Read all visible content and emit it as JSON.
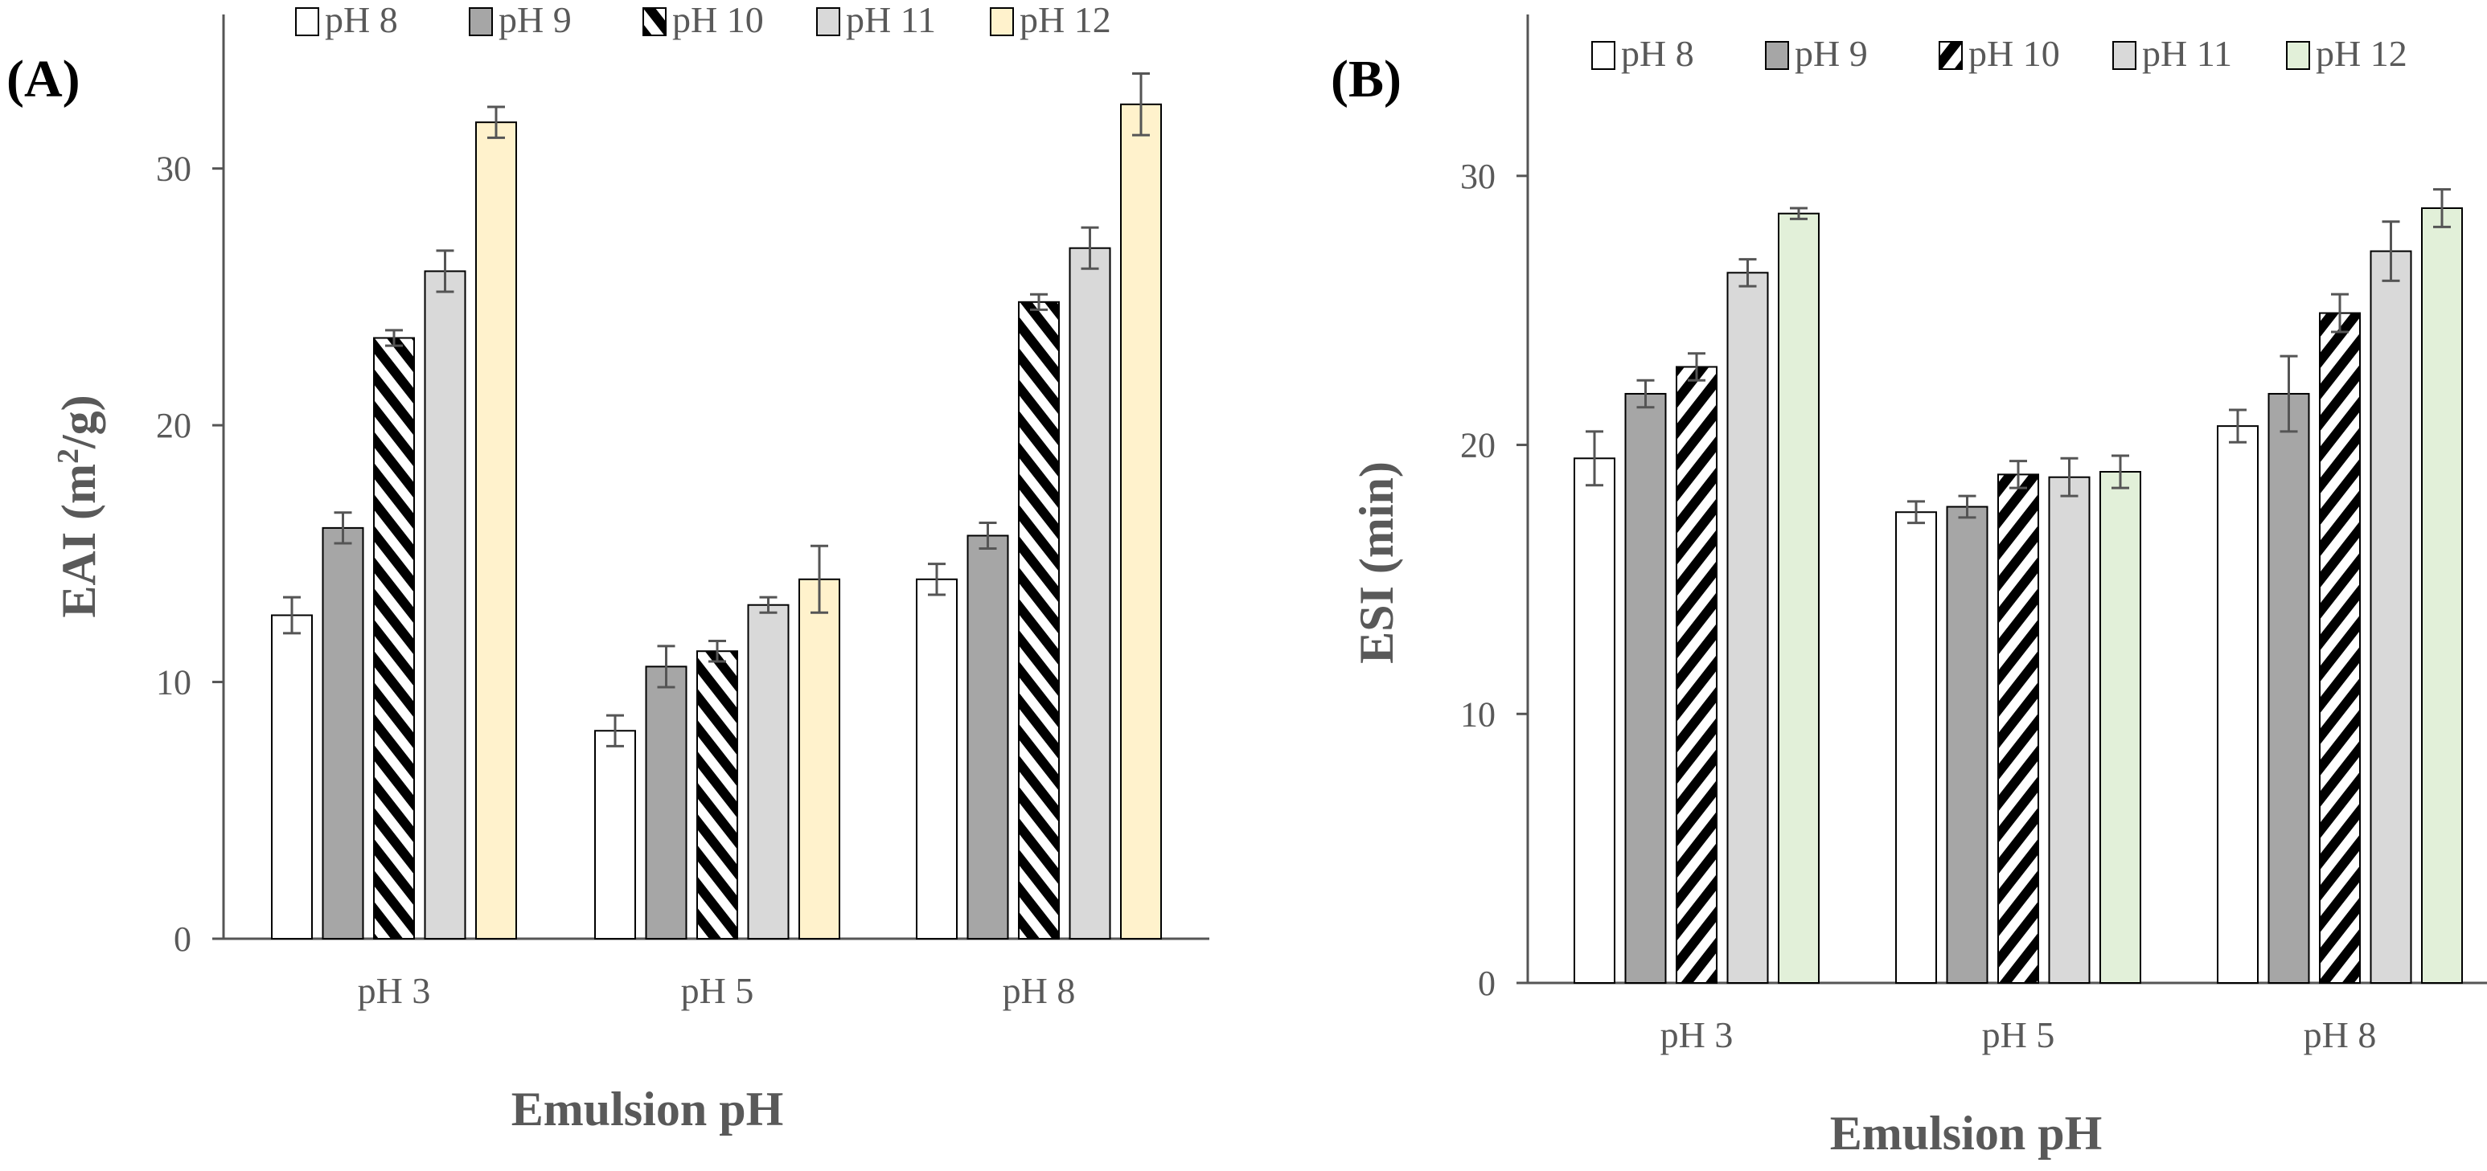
{
  "chart_data": [
    {
      "type": "bar",
      "panel_label": "(A)",
      "title": "",
      "xlabel": "Emulsion pH",
      "ylabel_main": "EAI (m",
      "ylabel_sup": "2",
      "ylabel_end": "/g)",
      "ylim": [
        0,
        36
      ],
      "yticks": [
        0,
        10,
        20,
        30
      ],
      "ytick_labels": [
        "0",
        "10",
        "20",
        "30"
      ],
      "grid": false,
      "legend_position": "top",
      "categories": [
        "pH 3",
        "pH 5",
        "pH 8"
      ],
      "series": [
        {
          "name": "pH 8",
          "pattern": "white",
          "values": [
            12.6,
            8.1,
            14.0
          ],
          "errors": [
            0.7,
            0.6,
            0.6
          ]
        },
        {
          "name": "pH 9",
          "pattern": "darkgray",
          "values": [
            16.0,
            10.6,
            15.7
          ],
          "errors": [
            0.6,
            0.8,
            0.5
          ]
        },
        {
          "name": "pH 10",
          "pattern": "stripes",
          "values": [
            23.4,
            11.2,
            24.8
          ],
          "errors": [
            0.3,
            0.4,
            0.3
          ]
        },
        {
          "name": "pH 11",
          "pattern": "lightgray",
          "values": [
            26.0,
            13.0,
            26.9
          ],
          "errors": [
            0.8,
            0.3,
            0.8
          ]
        },
        {
          "name": "pH 12",
          "pattern": "cream",
          "values": [
            31.8,
            14.0,
            32.5
          ],
          "errors": [
            0.6,
            1.3,
            1.2
          ]
        }
      ]
    },
    {
      "type": "bar",
      "panel_label": "(B)",
      "title": "",
      "xlabel": "Emulsion pH",
      "ylabel_main": "ESI (min)",
      "ylabel_sup": "",
      "ylabel_end": "",
      "ylim": [
        0,
        36
      ],
      "yticks": [
        0,
        10,
        20,
        30
      ],
      "ytick_labels": [
        "0",
        "10",
        "20",
        "30"
      ],
      "grid": false,
      "legend_position": "top",
      "categories": [
        "pH 3",
        "pH 5",
        "pH 8"
      ],
      "series": [
        {
          "name": "pH 8",
          "pattern": "white",
          "values": [
            19.5,
            17.5,
            20.7
          ],
          "errors": [
            1.0,
            0.4,
            0.6
          ]
        },
        {
          "name": "pH 9",
          "pattern": "darkgray",
          "values": [
            21.9,
            17.7,
            21.9
          ],
          "errors": [
            0.5,
            0.4,
            1.4
          ]
        },
        {
          "name": "pH 10",
          "pattern": "stripes",
          "values": [
            22.9,
            18.9,
            24.9
          ],
          "errors": [
            0.5,
            0.5,
            0.7
          ]
        },
        {
          "name": "pH 11",
          "pattern": "lightgray",
          "values": [
            26.4,
            18.8,
            27.2
          ],
          "errors": [
            0.5,
            0.7,
            1.1
          ]
        },
        {
          "name": "pH 12",
          "pattern": "green",
          "values": [
            28.6,
            19.0,
            28.8
          ],
          "errors": [
            0.2,
            0.6,
            0.7
          ]
        }
      ]
    }
  ],
  "colors": {
    "white": "#ffffff",
    "darkgray": "#a6a6a6",
    "lightgray": "#d9d9d9",
    "cream": "#fff2cc",
    "green": "#e2f0d9",
    "outline": "#000000",
    "axis": "#555555",
    "errorbar": "#555555"
  }
}
